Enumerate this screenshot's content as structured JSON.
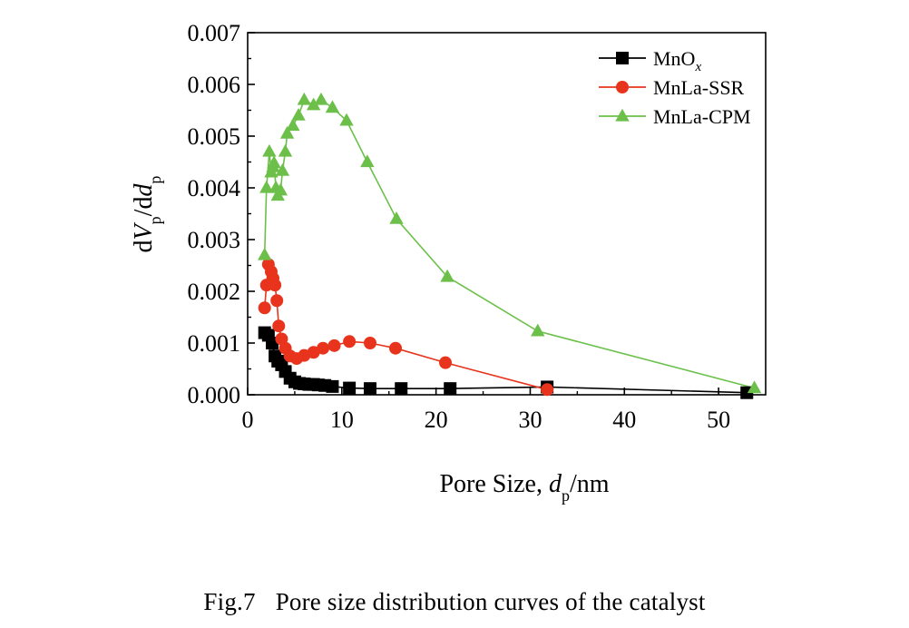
{
  "figure": {
    "number": "Fig.7",
    "caption": "Pore size distribution curves of the catalyst"
  },
  "chart_data": {
    "type": "line",
    "xlabel": "Pore Size, d_p/nm",
    "ylabel": "dV_p/dd_p",
    "xlim": [
      0,
      55
    ],
    "ylim": [
      0,
      0.007
    ],
    "x_ticks": [
      "0",
      "10",
      "20",
      "30",
      "40",
      "50"
    ],
    "y_ticks": [
      "0.000",
      "0.001",
      "0.002",
      "0.003",
      "0.004",
      "0.005",
      "0.006",
      "0.007"
    ],
    "legend_position": "top-right",
    "grid": false,
    "series": [
      {
        "name": "MnO_x",
        "color": "#000000",
        "marker": "square",
        "points": [
          [
            1.8,
            0.0012
          ],
          [
            2.2,
            0.00115
          ],
          [
            2.6,
            0.001
          ],
          [
            2.9,
            0.00075
          ],
          [
            3.2,
            0.00065
          ],
          [
            3.6,
            0.00058
          ],
          [
            4.0,
            0.00045
          ],
          [
            4.5,
            0.00032
          ],
          [
            5.0,
            0.00025
          ],
          [
            5.5,
            0.00022
          ],
          [
            6.0,
            0.00021
          ],
          [
            6.5,
            0.0002
          ],
          [
            7.0,
            0.0002
          ],
          [
            7.5,
            0.00019
          ],
          [
            8.2,
            0.00018
          ],
          [
            9.0,
            0.00016
          ],
          [
            10.8,
            0.00013
          ],
          [
            13.0,
            0.00012
          ],
          [
            16.3,
            0.00012
          ],
          [
            21.5,
            0.00012
          ],
          [
            31.8,
            0.00015
          ],
          [
            53.0,
            4e-05
          ]
        ]
      },
      {
        "name": "MnLa-SSR",
        "color": "#e8341c",
        "marker": "circle",
        "points": [
          [
            1.8,
            0.00168
          ],
          [
            2.0,
            0.00212
          ],
          [
            2.2,
            0.00252
          ],
          [
            2.5,
            0.00238
          ],
          [
            2.7,
            0.00225
          ],
          [
            2.9,
            0.00212
          ],
          [
            3.1,
            0.00182
          ],
          [
            3.3,
            0.00133
          ],
          [
            3.6,
            0.00108
          ],
          [
            4.0,
            0.0009
          ],
          [
            4.5,
            0.00075
          ],
          [
            5.2,
            0.0007
          ],
          [
            6.0,
            0.00076
          ],
          [
            7.0,
            0.00082
          ],
          [
            8.0,
            0.0009
          ],
          [
            9.2,
            0.00095
          ],
          [
            10.8,
            0.00103
          ],
          [
            13.0,
            0.001
          ],
          [
            15.7,
            0.0009
          ],
          [
            21.0,
            0.00062
          ],
          [
            31.8,
            0.0001
          ]
        ]
      },
      {
        "name": "MnLa-CPM",
        "color": "#6cc04a",
        "marker": "triangle",
        "points": [
          [
            1.8,
            0.0027
          ],
          [
            2.0,
            0.004
          ],
          [
            2.3,
            0.0047
          ],
          [
            2.5,
            0.0043
          ],
          [
            2.7,
            0.0044
          ],
          [
            2.8,
            0.00448
          ],
          [
            3.0,
            0.004
          ],
          [
            3.2,
            0.00385
          ],
          [
            3.5,
            0.00395
          ],
          [
            3.7,
            0.00433
          ],
          [
            4.0,
            0.0047
          ],
          [
            4.2,
            0.00505
          ],
          [
            4.8,
            0.0052
          ],
          [
            5.4,
            0.0054
          ],
          [
            6.0,
            0.0057
          ],
          [
            7.0,
            0.0056
          ],
          [
            7.8,
            0.0057
          ],
          [
            9.0,
            0.00555
          ],
          [
            10.5,
            0.0053
          ],
          [
            12.7,
            0.0045
          ],
          [
            15.8,
            0.0034
          ],
          [
            21.2,
            0.00228
          ],
          [
            30.8,
            0.00123
          ],
          [
            53.8,
            0.00013
          ]
        ]
      }
    ]
  }
}
